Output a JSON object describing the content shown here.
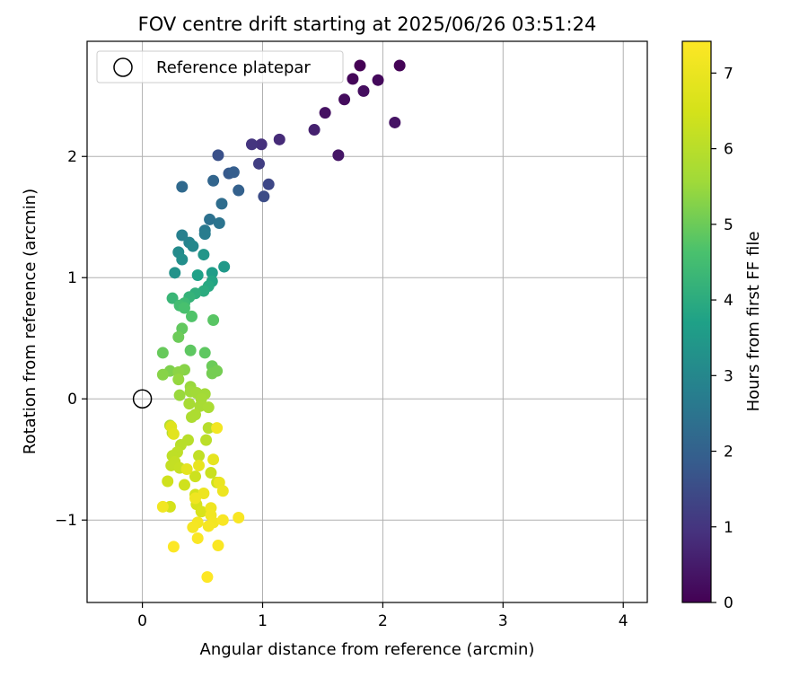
{
  "chart_data": {
    "type": "scatter",
    "title": "FOV centre drift starting at 2025/06/26 03:51:24",
    "xlabel": "Angular distance from reference (arcmin)",
    "ylabel": "Rotation from reference (arcmin)",
    "xlim": [
      -0.46,
      4.2
    ],
    "ylim": [
      -1.68,
      2.95
    ],
    "xticks": [
      0,
      1,
      2,
      3,
      4
    ],
    "xtick_labels": [
      "0",
      "1",
      "2",
      "3",
      "4"
    ],
    "yticks": [
      -1,
      0,
      1,
      2
    ],
    "ytick_labels": [
      "−1",
      "0",
      "1",
      "2"
    ],
    "grid": true,
    "legend": {
      "placement": "top-left",
      "entries": [
        "Reference platepar"
      ]
    },
    "reference_point": {
      "x": 0,
      "y": 0,
      "label": "Reference platepar"
    },
    "colorbar": {
      "label": "Hours from first FF file",
      "colormap": "viridis",
      "range": [
        0,
        7.42
      ],
      "ticks": [
        0,
        1,
        2,
        3,
        4,
        5,
        6,
        7
      ],
      "tick_labels": [
        "0",
        "1",
        "2",
        "3",
        "4",
        "5",
        "6",
        "7"
      ]
    },
    "points": [
      [
        1.81,
        2.75,
        0.0
      ],
      [
        2.14,
        2.75,
        0.05
      ],
      [
        1.75,
        2.64,
        0.1
      ],
      [
        1.96,
        2.63,
        0.15
      ],
      [
        1.68,
        2.47,
        0.2
      ],
      [
        1.84,
        2.54,
        0.25
      ],
      [
        1.52,
        2.36,
        0.3
      ],
      [
        2.1,
        2.28,
        0.35
      ],
      [
        1.63,
        2.01,
        0.4
      ],
      [
        1.43,
        2.22,
        0.6
      ],
      [
        1.14,
        2.14,
        0.8
      ],
      [
        0.99,
        2.1,
        0.9
      ],
      [
        0.91,
        2.1,
        1.0
      ],
      [
        0.97,
        1.94,
        1.2
      ],
      [
        1.05,
        1.77,
        1.4
      ],
      [
        1.01,
        1.67,
        1.5
      ],
      [
        0.63,
        2.01,
        1.6
      ],
      [
        0.72,
        1.86,
        1.8
      ],
      [
        0.76,
        1.87,
        1.9
      ],
      [
        0.8,
        1.72,
        2.0
      ],
      [
        0.59,
        1.8,
        2.1
      ],
      [
        0.33,
        1.75,
        2.2
      ],
      [
        0.66,
        1.61,
        2.3
      ],
      [
        0.56,
        1.48,
        2.4
      ],
      [
        0.64,
        1.45,
        2.5
      ],
      [
        0.52,
        1.39,
        2.6
      ],
      [
        0.52,
        1.36,
        2.7
      ],
      [
        0.33,
        1.35,
        2.8
      ],
      [
        0.39,
        1.29,
        2.9
      ],
      [
        0.42,
        1.26,
        3.0
      ],
      [
        0.3,
        1.21,
        3.1
      ],
      [
        0.33,
        1.15,
        3.2
      ],
      [
        0.27,
        1.04,
        3.3
      ],
      [
        0.51,
        1.19,
        3.4
      ],
      [
        0.68,
        1.09,
        3.5
      ],
      [
        0.58,
        1.04,
        3.6
      ],
      [
        0.46,
        1.02,
        3.7
      ],
      [
        0.58,
        0.97,
        3.8
      ],
      [
        0.55,
        0.93,
        3.9
      ],
      [
        0.51,
        0.89,
        4.0
      ],
      [
        0.44,
        0.87,
        4.1
      ],
      [
        0.39,
        0.84,
        4.2
      ],
      [
        0.25,
        0.83,
        4.3
      ],
      [
        0.35,
        0.79,
        4.4
      ],
      [
        0.31,
        0.77,
        4.5
      ],
      [
        0.35,
        0.75,
        4.6
      ],
      [
        0.41,
        0.68,
        4.7
      ],
      [
        0.59,
        0.65,
        4.8
      ],
      [
        0.33,
        0.58,
        4.9
      ],
      [
        0.3,
        0.51,
        5.0
      ],
      [
        0.4,
        0.4,
        4.85
      ],
      [
        0.52,
        0.38,
        4.85
      ],
      [
        0.17,
        0.38,
        4.95
      ],
      [
        0.58,
        0.27,
        5.0
      ],
      [
        0.58,
        0.21,
        5.1
      ],
      [
        0.62,
        0.23,
        5.1
      ],
      [
        0.23,
        0.23,
        5.2
      ],
      [
        0.17,
        0.2,
        5.3
      ],
      [
        0.35,
        0.24,
        5.3
      ],
      [
        0.3,
        0.22,
        5.35
      ],
      [
        0.3,
        0.16,
        5.45
      ],
      [
        0.4,
        0.1,
        5.5
      ],
      [
        0.31,
        0.03,
        5.5
      ],
      [
        0.4,
        0.06,
        5.55
      ],
      [
        0.52,
        0.04,
        5.6
      ],
      [
        0.45,
        0.05,
        5.6
      ],
      [
        0.49,
        0.0,
        5.65
      ],
      [
        0.39,
        -0.04,
        5.7
      ],
      [
        0.48,
        -0.06,
        5.7
      ],
      [
        0.55,
        -0.07,
        5.75
      ],
      [
        0.44,
        -0.13,
        5.8
      ],
      [
        0.41,
        -0.15,
        5.8
      ],
      [
        0.23,
        -0.22,
        5.9
      ],
      [
        0.25,
        -0.28,
        5.9
      ],
      [
        0.55,
        -0.24,
        5.95
      ],
      [
        0.38,
        -0.34,
        6.0
      ],
      [
        0.32,
        -0.38,
        6.0
      ],
      [
        0.53,
        -0.34,
        6.05
      ],
      [
        0.29,
        -0.44,
        6.1
      ],
      [
        0.25,
        -0.47,
        6.1
      ],
      [
        0.47,
        -0.47,
        6.15
      ],
      [
        0.27,
        -0.52,
        6.2
      ],
      [
        0.24,
        -0.55,
        6.2
      ],
      [
        0.31,
        -0.57,
        6.25
      ],
      [
        0.57,
        -0.61,
        6.3
      ],
      [
        0.44,
        -0.64,
        6.35
      ],
      [
        0.21,
        -0.68,
        6.4
      ],
      [
        0.35,
        -0.71,
        6.4
      ],
      [
        0.62,
        -0.69,
        6.45
      ],
      [
        0.44,
        -0.79,
        6.5
      ],
      [
        0.23,
        -0.89,
        6.5
      ],
      [
        0.45,
        -0.87,
        6.55
      ],
      [
        0.49,
        -0.93,
        6.6
      ],
      [
        0.24,
        -0.23,
        6.75
      ],
      [
        0.26,
        -0.29,
        6.8
      ],
      [
        0.37,
        -0.58,
        6.85
      ],
      [
        0.59,
        -0.5,
        6.9
      ],
      [
        0.47,
        -0.55,
        6.95
      ],
      [
        0.64,
        -0.69,
        7.0
      ],
      [
        0.67,
        -0.76,
        7.05
      ],
      [
        0.51,
        -0.78,
        7.05
      ],
      [
        0.44,
        -0.82,
        7.1
      ],
      [
        0.57,
        -0.9,
        7.1
      ],
      [
        0.17,
        -0.89,
        7.15
      ],
      [
        0.57,
        -0.96,
        7.15
      ],
      [
        0.46,
        -1.02,
        7.2
      ],
      [
        0.59,
        -1.02,
        7.2
      ],
      [
        0.42,
        -1.06,
        7.25
      ],
      [
        0.55,
        -1.05,
        7.25
      ],
      [
        0.67,
        -1.0,
        7.3
      ],
      [
        0.8,
        -0.98,
        7.3
      ],
      [
        0.46,
        -1.15,
        7.35
      ],
      [
        0.63,
        -1.21,
        7.35
      ],
      [
        0.26,
        -1.22,
        7.4
      ],
      [
        0.54,
        -1.47,
        7.42
      ],
      [
        0.62,
        -0.24,
        7.2
      ]
    ]
  }
}
